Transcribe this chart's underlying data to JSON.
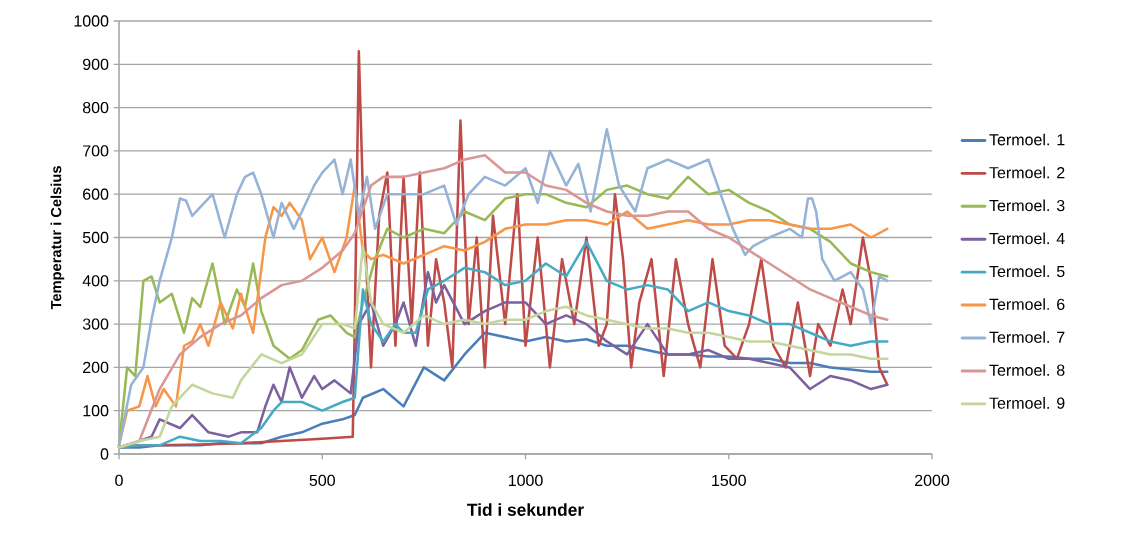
{
  "chart_data": {
    "type": "line",
    "xlabel": "Tid i sekunder",
    "ylabel": "Temperatur i Celsius",
    "xlim": [
      0,
      2000
    ],
    "ylim": [
      0,
      1000
    ],
    "xticks": [
      0,
      500,
      1000,
      1500,
      2000
    ],
    "yticks": [
      0,
      100,
      200,
      300,
      400,
      500,
      600,
      700,
      800,
      900,
      1000
    ],
    "grid": "y",
    "legend": "right",
    "marker": "none",
    "line_style": "solid",
    "series": [
      {
        "name": "Termoel. 1",
        "color": "#4a7ebb",
        "x": [
          0,
          50,
          100,
          150,
          200,
          250,
          300,
          350,
          400,
          450,
          500,
          550,
          580,
          600,
          650,
          700,
          750,
          800,
          850,
          900,
          950,
          1000,
          1050,
          1100,
          1150,
          1200,
          1250,
          1300,
          1350,
          1400,
          1450,
          1500,
          1550,
          1600,
          1650,
          1700,
          1750,
          1800,
          1850,
          1890
        ],
        "values": [
          15,
          15,
          20,
          20,
          20,
          25,
          25,
          25,
          40,
          50,
          70,
          80,
          90,
          130,
          150,
          110,
          200,
          170,
          230,
          280,
          270,
          260,
          270,
          260,
          265,
          250,
          250,
          240,
          230,
          230,
          225,
          225,
          220,
          220,
          210,
          210,
          200,
          195,
          190,
          190
        ]
      },
      {
        "name": "Termoel. 2",
        "color": "#be4b48",
        "x": [
          0,
          50,
          100,
          200,
          300,
          400,
          500,
          575,
          580,
          590,
          600,
          620,
          640,
          660,
          680,
          700,
          720,
          740,
          760,
          780,
          800,
          820,
          840,
          860,
          880,
          900,
          920,
          950,
          980,
          1000,
          1030,
          1060,
          1090,
          1120,
          1150,
          1180,
          1200,
          1220,
          1240,
          1260,
          1280,
          1310,
          1340,
          1370,
          1400,
          1430,
          1460,
          1490,
          1520,
          1550,
          1580,
          1610,
          1640,
          1670,
          1700,
          1720,
          1750,
          1780,
          1800,
          1830,
          1850,
          1870,
          1890
        ],
        "values": [
          15,
          20,
          20,
          22,
          25,
          30,
          35,
          40,
          300,
          930,
          600,
          200,
          550,
          650,
          250,
          640,
          300,
          650,
          250,
          450,
          350,
          200,
          770,
          300,
          500,
          200,
          550,
          300,
          600,
          250,
          500,
          200,
          450,
          300,
          500,
          250,
          300,
          600,
          450,
          200,
          350,
          450,
          180,
          450,
          300,
          200,
          450,
          250,
          220,
          300,
          450,
          250,
          200,
          350,
          180,
          300,
          250,
          380,
          300,
          500,
          400,
          200,
          160
        ]
      },
      {
        "name": "Termoel. 3",
        "color": "#98b954",
        "x": [
          0,
          20,
          40,
          60,
          80,
          100,
          130,
          160,
          180,
          200,
          230,
          260,
          290,
          310,
          330,
          350,
          380,
          420,
          450,
          490,
          520,
          560,
          580,
          600,
          630,
          660,
          700,
          750,
          800,
          850,
          900,
          950,
          1000,
          1050,
          1100,
          1150,
          1200,
          1250,
          1300,
          1350,
          1400,
          1450,
          1500,
          1550,
          1600,
          1650,
          1700,
          1750,
          1800,
          1850,
          1890
        ],
        "values": [
          20,
          200,
          180,
          400,
          410,
          350,
          370,
          280,
          360,
          340,
          440,
          300,
          380,
          340,
          440,
          330,
          250,
          220,
          240,
          310,
          320,
          280,
          270,
          350,
          450,
          520,
          500,
          520,
          510,
          560,
          540,
          590,
          600,
          600,
          580,
          570,
          610,
          620,
          600,
          590,
          640,
          600,
          610,
          580,
          560,
          530,
          520,
          490,
          440,
          420,
          410
        ]
      },
      {
        "name": "Termoel. 4",
        "color": "#7d60a0",
        "x": [
          0,
          50,
          80,
          100,
          150,
          180,
          220,
          270,
          300,
          340,
          360,
          380,
          400,
          420,
          450,
          480,
          500,
          530,
          570,
          590,
          620,
          650,
          680,
          700,
          730,
          760,
          780,
          800,
          850,
          900,
          950,
          1000,
          1050,
          1100,
          1150,
          1200,
          1250,
          1300,
          1350,
          1400,
          1450,
          1500,
          1550,
          1600,
          1650,
          1700,
          1750,
          1800,
          1850,
          1890
        ],
        "values": [
          15,
          30,
          40,
          80,
          60,
          90,
          50,
          40,
          50,
          50,
          110,
          160,
          120,
          200,
          130,
          180,
          150,
          170,
          140,
          300,
          350,
          250,
          300,
          350,
          250,
          420,
          350,
          390,
          300,
          330,
          350,
          350,
          300,
          320,
          300,
          260,
          230,
          300,
          230,
          230,
          240,
          220,
          220,
          210,
          200,
          150,
          180,
          170,
          150,
          160
        ]
      },
      {
        "name": "Termoel. 5",
        "color": "#46aac5",
        "x": [
          0,
          50,
          100,
          150,
          200,
          250,
          300,
          350,
          380,
          400,
          450,
          500,
          550,
          580,
          600,
          620,
          650,
          680,
          700,
          730,
          760,
          800,
          850,
          900,
          950,
          1000,
          1050,
          1100,
          1150,
          1200,
          1250,
          1300,
          1350,
          1400,
          1450,
          1500,
          1550,
          1600,
          1650,
          1700,
          1750,
          1800,
          1850,
          1890
        ],
        "values": [
          15,
          20,
          20,
          40,
          30,
          30,
          25,
          60,
          100,
          120,
          120,
          100,
          120,
          130,
          380,
          300,
          260,
          300,
          280,
          280,
          380,
          400,
          430,
          420,
          390,
          400,
          440,
          410,
          490,
          400,
          380,
          390,
          380,
          330,
          350,
          330,
          320,
          300,
          300,
          280,
          260,
          250,
          260,
          260
        ]
      },
      {
        "name": "Termoel. 6",
        "color": "#f79646",
        "x": [
          0,
          20,
          50,
          70,
          90,
          110,
          140,
          160,
          180,
          200,
          220,
          250,
          280,
          300,
          330,
          360,
          380,
          400,
          420,
          450,
          470,
          500,
          530,
          560,
          580,
          600,
          620,
          650,
          700,
          750,
          800,
          850,
          900,
          950,
          1000,
          1050,
          1100,
          1150,
          1200,
          1250,
          1300,
          1350,
          1400,
          1450,
          1500,
          1550,
          1600,
          1650,
          1700,
          1750,
          1800,
          1850,
          1890
        ],
        "values": [
          20,
          100,
          110,
          180,
          110,
          150,
          110,
          250,
          260,
          300,
          250,
          350,
          290,
          370,
          280,
          500,
          570,
          550,
          580,
          540,
          450,
          500,
          420,
          500,
          620,
          470,
          450,
          460,
          440,
          460,
          480,
          470,
          490,
          520,
          530,
          530,
          540,
          540,
          530,
          560,
          520,
          530,
          540,
          530,
          530,
          540,
          540,
          530,
          520,
          520,
          530,
          500,
          520
        ]
      },
      {
        "name": "Termoel. 7",
        "color": "#95b3d7",
        "x": [
          0,
          30,
          60,
          80,
          100,
          130,
          150,
          165,
          180,
          200,
          230,
          260,
          290,
          310,
          330,
          350,
          380,
          400,
          430,
          450,
          480,
          500,
          530,
          550,
          570,
          590,
          610,
          630,
          660,
          700,
          750,
          800,
          830,
          860,
          900,
          950,
          1000,
          1030,
          1060,
          1100,
          1130,
          1160,
          1200,
          1230,
          1270,
          1300,
          1350,
          1400,
          1450,
          1480,
          1510,
          1540,
          1560,
          1600,
          1650,
          1680,
          1695,
          1705,
          1715,
          1730,
          1760,
          1800,
          1830,
          1850,
          1870,
          1890
        ],
        "values": [
          20,
          160,
          200,
          310,
          400,
          500,
          590,
          585,
          550,
          570,
          600,
          500,
          600,
          640,
          650,
          600,
          500,
          580,
          520,
          560,
          620,
          650,
          680,
          600,
          680,
          550,
          640,
          520,
          600,
          600,
          600,
          620,
          530,
          600,
          640,
          620,
          660,
          580,
          700,
          620,
          670,
          560,
          750,
          620,
          560,
          660,
          680,
          660,
          680,
          600,
          520,
          460,
          480,
          500,
          520,
          500,
          590,
          590,
          560,
          450,
          400,
          420,
          380,
          300,
          410,
          400
        ]
      },
      {
        "name": "Termoel. 8",
        "color": "#d99694",
        "x": [
          0,
          50,
          100,
          150,
          200,
          250,
          300,
          350,
          400,
          450,
          500,
          550,
          580,
          620,
          650,
          700,
          750,
          800,
          850,
          900,
          950,
          1000,
          1050,
          1100,
          1150,
          1200,
          1250,
          1300,
          1350,
          1400,
          1450,
          1500,
          1550,
          1600,
          1650,
          1700,
          1750,
          1800,
          1850,
          1890
        ],
        "values": [
          15,
          30,
          150,
          230,
          270,
          300,
          320,
          360,
          390,
          400,
          430,
          470,
          510,
          620,
          640,
          640,
          650,
          660,
          680,
          690,
          650,
          650,
          620,
          610,
          580,
          560,
          550,
          550,
          560,
          560,
          520,
          500,
          470,
          440,
          410,
          380,
          360,
          340,
          320,
          310
        ]
      },
      {
        "name": "Termoel. 9",
        "color": "#c3d69b",
        "x": [
          0,
          50,
          100,
          130,
          180,
          230,
          280,
          300,
          350,
          400,
          450,
          500,
          550,
          580,
          600,
          620,
          650,
          700,
          750,
          800,
          850,
          900,
          950,
          1000,
          1050,
          1100,
          1150,
          1200,
          1250,
          1300,
          1350,
          1400,
          1450,
          1500,
          1550,
          1600,
          1650,
          1700,
          1750,
          1800,
          1850,
          1890
        ],
        "values": [
          15,
          30,
          40,
          110,
          160,
          140,
          130,
          170,
          230,
          210,
          230,
          300,
          300,
          290,
          480,
          350,
          300,
          280,
          320,
          300,
          310,
          300,
          310,
          310,
          330,
          340,
          320,
          310,
          300,
          290,
          290,
          280,
          280,
          270,
          260,
          260,
          250,
          240,
          230,
          230,
          220,
          220
        ]
      }
    ]
  }
}
